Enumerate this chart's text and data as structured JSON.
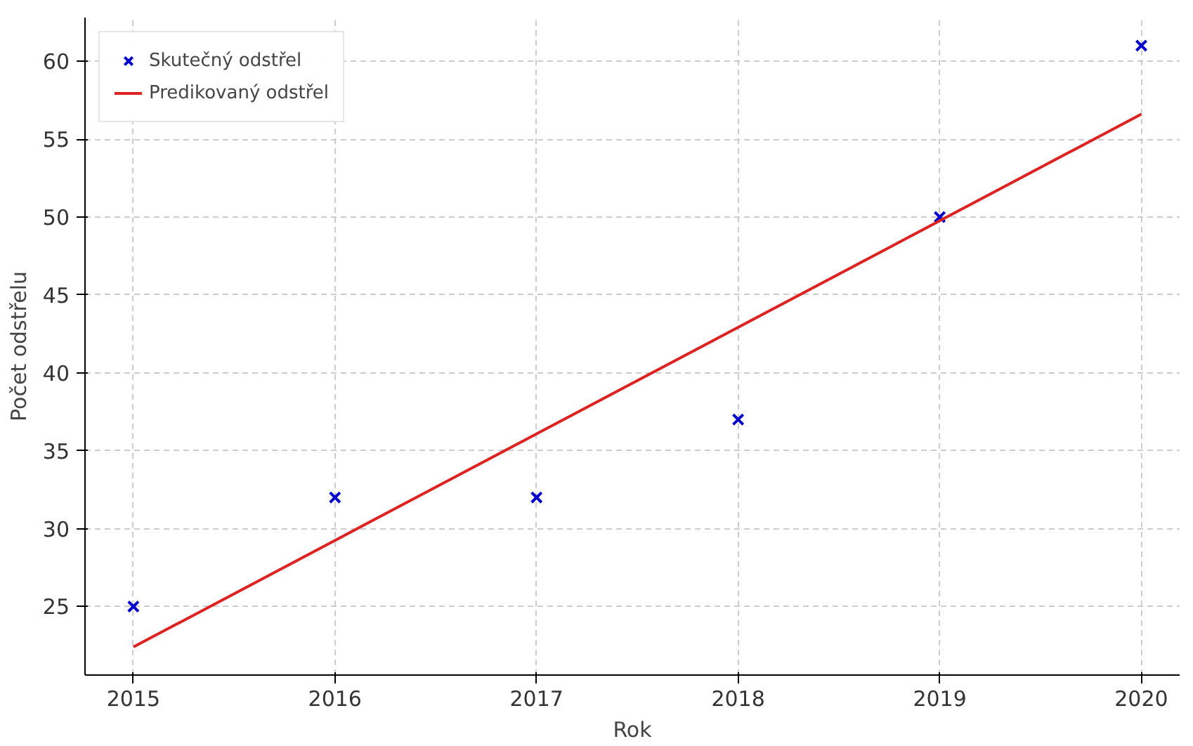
{
  "chart_data": {
    "type": "scatter",
    "xlabel": "Rok",
    "ylabel": "Počet odstřelu",
    "x": [
      2015,
      2016,
      2017,
      2018,
      2019,
      2020
    ],
    "series": [
      {
        "name": "Skutečný odstřel",
        "color": "#0000cc",
        "marker": "cross",
        "values": [
          25,
          32,
          32,
          37,
          50,
          61
        ]
      },
      {
        "name": "Predikovaný odstřel",
        "type": "line",
        "color": "#dd2222",
        "x": [
          2015,
          2020
        ],
        "values": [
          22.4,
          56.6
        ]
      }
    ],
    "xlim": [
      2014.76,
      2020.19
    ],
    "ylim": [
      20.6,
      62.8
    ],
    "xticks": [
      2015,
      2016,
      2017,
      2018,
      2019,
      2020
    ],
    "yticks": [
      25,
      30,
      35,
      40,
      45,
      50,
      55,
      60
    ],
    "grid": true,
    "legend": "top left"
  }
}
